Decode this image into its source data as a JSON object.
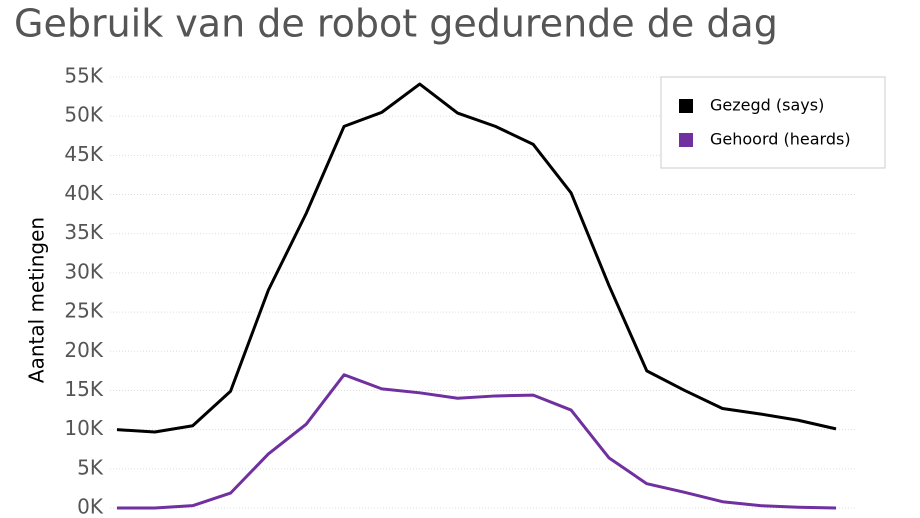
{
  "chart_data": {
    "type": "line",
    "title": "Gebruik van de robot gedurende de dag",
    "y_label": "Aantal metingen",
    "categories": [
      null,
      null,
      null,
      null,
      null,
      null,
      null,
      null,
      null,
      null,
      null,
      null,
      null,
      null,
      null,
      null,
      null,
      null,
      null,
      null
    ],
    "series": [
      {
        "name": "Gezegd (says)",
        "color": "#000000",
        "values": [
          10000,
          9700,
          10500,
          14900,
          27800,
          37600,
          48700,
          50500,
          54100,
          50400,
          48700,
          46400,
          40200,
          28400,
          17500,
          15000,
          12700,
          12000,
          11200,
          10100
        ]
      },
      {
        "name": "Gehoord (heards)",
        "color": "#7030a0",
        "values": [
          0,
          0,
          300,
          1900,
          6900,
          10700,
          17000,
          15200,
          14700,
          14000,
          14300,
          14400,
          12500,
          6400,
          3100,
          2000,
          800,
          300,
          100,
          0
        ]
      }
    ],
    "ylim": [
      0,
      55000
    ],
    "yticks": [
      {
        "value": 0,
        "label": "0K"
      },
      {
        "value": 5000,
        "label": "5K"
      },
      {
        "value": 10000,
        "label": "10K"
      },
      {
        "value": 15000,
        "label": "15K"
      },
      {
        "value": 20000,
        "label": "20K"
      },
      {
        "value": 25000,
        "label": "25K"
      },
      {
        "value": 30000,
        "label": "30K"
      },
      {
        "value": 35000,
        "label": "35K"
      },
      {
        "value": 40000,
        "label": "40K"
      },
      {
        "value": 45000,
        "label": "45K"
      },
      {
        "value": 50000,
        "label": "50K"
      },
      {
        "value": 55000,
        "label": "55K"
      }
    ],
    "grid": true,
    "legend": "top-right"
  }
}
